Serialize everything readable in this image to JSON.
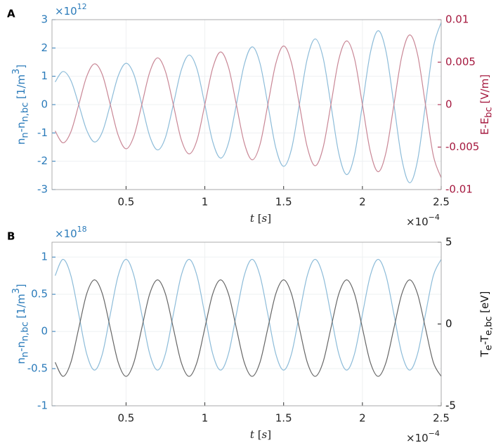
{
  "chart_data": [
    {
      "type": "line",
      "panel_label": "A",
      "x": [
        0.05,
        0.1,
        0.15,
        0.2,
        0.25,
        0.3,
        0.35,
        0.4,
        0.45,
        0.5,
        0.55,
        0.6,
        0.65,
        0.7,
        0.75,
        0.8,
        0.85,
        0.9,
        0.95,
        1,
        1.05,
        1.1,
        1.15,
        1.2,
        1.25,
        1.3,
        1.35,
        1.4,
        1.45,
        1.5,
        1.55,
        1.6,
        1.65,
        1.7,
        1.75,
        1.8,
        1.85,
        1.9,
        1.95,
        2,
        2.05,
        2.1,
        2.15,
        2.2,
        2.25,
        2.3,
        2.35,
        2.4,
        2.45,
        2.5
      ],
      "xlim": [
        0.03,
        2.5
      ],
      "xticks": [
        0.5,
        1,
        1.5,
        2,
        2.5
      ],
      "x_multiplier": "×10",
      "x_exponent": "−4",
      "xlabel_parts": [
        "t",
        " [",
        "s",
        "]"
      ],
      "ylim": [
        -3,
        3
      ],
      "yticks": [
        -3,
        -2,
        -1,
        0,
        1,
        2,
        3
      ],
      "y_multiplier": "×10",
      "y_exponent": "12",
      "ylabel_parts": [
        "n",
        "n",
        "-n",
        "n,bc",
        " [1/m",
        "3",
        "]"
      ],
      "y_color": "#2b7bba",
      "y2lim": [
        -0.01,
        0.01
      ],
      "y2ticks": [
        -0.01,
        -0.005,
        0,
        0.005,
        0.01
      ],
      "y2label_parts": [
        "E-E",
        "bc",
        " [V/m]"
      ],
      "y2_color": "#a5193f",
      "grid": true,
      "series": [
        {
          "color": "#8dbcd9",
          "values": [
            0.8,
            1.17,
            0.85,
            0,
            -0.9,
            -1.32,
            -0.96,
            0,
            1.01,
            1.46,
            1.06,
            0,
            -1.11,
            -1.6,
            -1.16,
            0,
            1.21,
            1.75,
            1.26,
            0,
            -1.31,
            -1.89,
            -1.36,
            0,
            1.41,
            2.04,
            1.46,
            0,
            -1.52,
            -2.18,
            -1.57,
            0,
            1.62,
            2.32,
            1.67,
            0,
            -1.72,
            -2.47,
            -1.77,
            0,
            1.82,
            2.61,
            1.87,
            0,
            -1.92,
            -2.76,
            -1.97,
            0,
            2.02,
            2.9
          ]
        },
        {
          "color": "#c98796",
          "axis": "y2",
          "values": [
            -0.0031,
            -0.0045,
            -0.0032,
            0,
            0.0033,
            0.0048,
            0.0035,
            0,
            -0.0036,
            -0.0052,
            -0.0037,
            0,
            0.0038,
            0.0055,
            0.0039,
            0,
            -0.0041,
            -0.0058,
            -0.0042,
            0,
            0.0043,
            0.0062,
            0.0044,
            0,
            -0.0045,
            -0.0065,
            -0.0047,
            0,
            0.0048,
            0.0069,
            0.0049,
            0,
            -0.005,
            -0.0072,
            -0.0051,
            0,
            0.0053,
            0.0075,
            0.0054,
            0,
            -0.0055,
            -0.0079,
            -0.0056,
            0,
            0.0057,
            0.0082,
            0.0059,
            0,
            -0.006,
            -0.0086
          ]
        }
      ]
    },
    {
      "type": "line",
      "panel_label": "B",
      "x": [
        0.05,
        0.1,
        0.15,
        0.2,
        0.25,
        0.3,
        0.35,
        0.4,
        0.45,
        0.5,
        0.55,
        0.6,
        0.65,
        0.7,
        0.75,
        0.8,
        0.85,
        0.9,
        0.95,
        1,
        1.05,
        1.1,
        1.15,
        1.2,
        1.25,
        1.3,
        1.35,
        1.4,
        1.45,
        1.5,
        1.55,
        1.6,
        1.65,
        1.7,
        1.75,
        1.8,
        1.85,
        1.9,
        1.95,
        2,
        2.05,
        2.1,
        2.15,
        2.2,
        2.25,
        2.3,
        2.35,
        2.4,
        2.45,
        2.5
      ],
      "xlim": [
        0.03,
        2.5
      ],
      "xticks": [
        0.5,
        1,
        1.5,
        2,
        2.5
      ],
      "x_multiplier": "×10",
      "x_exponent": "−4",
      "xlabel_parts": [
        "t",
        " [",
        "s",
        "]"
      ],
      "ylim": [
        -1,
        1.2
      ],
      "yticks": [
        -1,
        -0.5,
        0,
        0.5,
        1
      ],
      "y_multiplier": "×10",
      "y_exponent": "18",
      "ylabel_parts": [
        "n",
        "n",
        "-n",
        "n,bc",
        " [1/m",
        "3",
        "]"
      ],
      "y_color": "#2b7bba",
      "y2lim": [
        -5,
        5
      ],
      "y2ticks": [
        -5,
        0,
        5
      ],
      "y2label_parts": [
        "T",
        "e",
        "-T",
        "e,bc",
        " [eV]"
      ],
      "y2_color": "#111111",
      "grid": true,
      "series": [
        {
          "color": "#8dbcd9",
          "values": [
            0.75,
            0.97,
            0.75,
            0.23,
            -0.3,
            -0.52,
            -0.3,
            0.23,
            0.75,
            0.97,
            0.75,
            0.23,
            -0.3,
            -0.52,
            -0.3,
            0.23,
            0.75,
            0.97,
            0.75,
            0.23,
            -0.3,
            -0.52,
            -0.3,
            0.23,
            0.75,
            0.97,
            0.75,
            0.23,
            -0.3,
            -0.52,
            -0.3,
            0.23,
            0.75,
            0.97,
            0.75,
            0.23,
            -0.3,
            -0.52,
            -0.3,
            0.23,
            0.75,
            0.97,
            0.75,
            0.23,
            -0.3,
            -0.52,
            -0.3,
            0.23,
            0.75,
            0.97
          ]
        },
        {
          "color": "#666666",
          "axis": "y2",
          "values": [
            -2.34,
            -3.2,
            -2.34,
            -0.25,
            1.84,
            2.7,
            1.84,
            -0.25,
            -2.34,
            -3.2,
            -2.34,
            -0.25,
            1.84,
            2.7,
            1.84,
            -0.25,
            -2.34,
            -3.2,
            -2.34,
            -0.25,
            1.84,
            2.7,
            1.84,
            -0.25,
            -2.34,
            -3.2,
            -2.34,
            -0.25,
            1.84,
            2.7,
            1.84,
            -0.25,
            -2.34,
            -3.2,
            -2.34,
            -0.25,
            1.84,
            2.7,
            1.84,
            -0.25,
            -2.34,
            -3.2,
            -2.34,
            -0.25,
            1.84,
            2.7,
            1.84,
            -0.25,
            -2.34,
            -3.2
          ]
        }
      ]
    }
  ]
}
